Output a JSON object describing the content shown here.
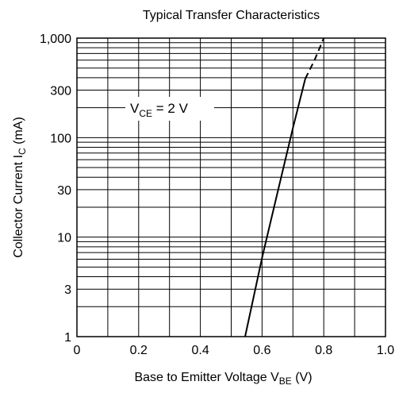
{
  "chart_data": {
    "type": "line",
    "title": "Typical Transfer Characteristics",
    "xlabel": {
      "main": "Base to Emitter Voltage  V",
      "sub": "BE",
      "unit": "  (V)"
    },
    "ylabel": {
      "main": "Collector Current  I",
      "sub": "C",
      "unit": "  (mA)"
    },
    "xlim": [
      0,
      1.0
    ],
    "ylim": [
      1,
      1000
    ],
    "y_scale": "log",
    "grid": true,
    "x_ticks": [
      0,
      0.1,
      0.2,
      0.3,
      0.4,
      0.5,
      0.6,
      0.7,
      0.8,
      0.9,
      1.0
    ],
    "x_tick_labels": [
      {
        "value": 0,
        "label": "0"
      },
      {
        "value": 0.2,
        "label": "0.2"
      },
      {
        "value": 0.4,
        "label": "0.4"
      },
      {
        "value": 0.6,
        "label": "0.6"
      },
      {
        "value": 0.8,
        "label": "0.8"
      },
      {
        "value": 1.0,
        "label": "1.0"
      }
    ],
    "y_tick_labels": [
      {
        "value": 1,
        "label": "1"
      },
      {
        "value": 3,
        "label": "3"
      },
      {
        "value": 10,
        "label": "10"
      },
      {
        "value": 30,
        "label": "30"
      },
      {
        "value": 100,
        "label": "100"
      },
      {
        "value": 300,
        "label": "300"
      },
      {
        "value": 1000,
        "label": "1,000"
      }
    ],
    "annotation": {
      "main": "V",
      "sub": "CE",
      "rest": " = 2 V"
    },
    "series": [
      {
        "style": "solid",
        "x": [
          0.545,
          0.6,
          0.65,
          0.7,
          0.74
        ],
        "y": [
          1,
          6.2,
          28,
          125,
          390
        ]
      },
      {
        "style": "dashed",
        "x": [
          0.74,
          0.77,
          0.8
        ],
        "y": [
          390,
          600,
          1000
        ]
      }
    ]
  }
}
